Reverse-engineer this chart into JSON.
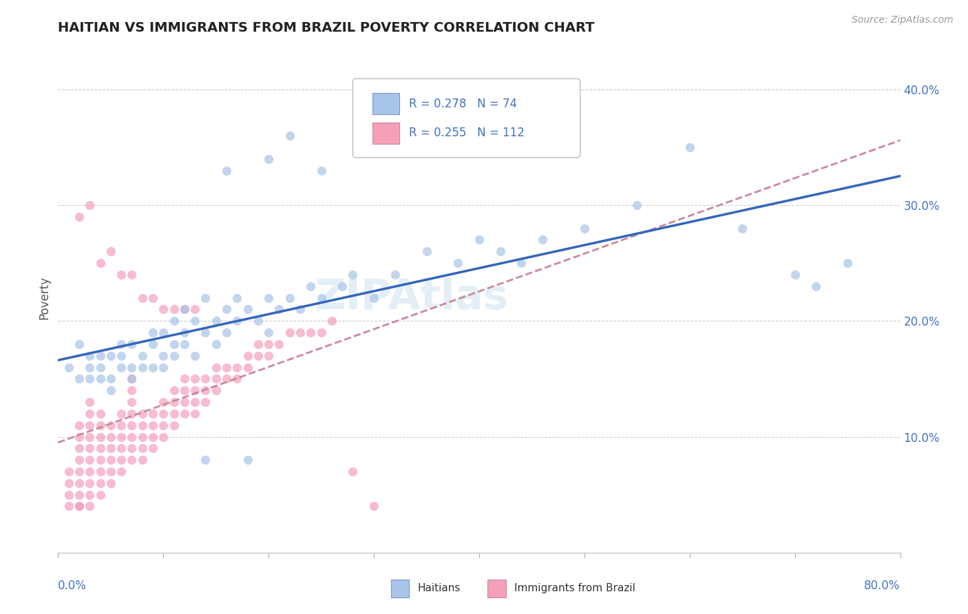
{
  "title": "HAITIAN VS IMMIGRANTS FROM BRAZIL POVERTY CORRELATION CHART",
  "source": "Source: ZipAtlas.com",
  "ylabel": "Poverty",
  "ytick_values": [
    0.1,
    0.2,
    0.3,
    0.4
  ],
  "xlim": [
    0.0,
    0.8
  ],
  "ylim": [
    0.0,
    0.44
  ],
  "legend1_R": "0.278",
  "legend1_N": "74",
  "legend2_R": "0.255",
  "legend2_N": "112",
  "color_haitian": "#a8c4e8",
  "color_brazil": "#f4a0b8",
  "color_line_haitian": "#3366bb",
  "color_line_brazil": "#cc8899",
  "haitian_x": [
    0.01,
    0.02,
    0.02,
    0.03,
    0.03,
    0.03,
    0.04,
    0.04,
    0.04,
    0.05,
    0.05,
    0.05,
    0.06,
    0.06,
    0.06,
    0.07,
    0.07,
    0.07,
    0.08,
    0.08,
    0.09,
    0.09,
    0.09,
    0.1,
    0.1,
    0.1,
    0.11,
    0.11,
    0.11,
    0.12,
    0.12,
    0.12,
    0.13,
    0.13,
    0.14,
    0.14,
    0.15,
    0.15,
    0.16,
    0.16,
    0.17,
    0.17,
    0.18,
    0.19,
    0.2,
    0.2,
    0.21,
    0.22,
    0.23,
    0.24,
    0.25,
    0.27,
    0.28,
    0.3,
    0.32,
    0.35,
    0.38,
    0.4,
    0.42,
    0.44,
    0.46,
    0.5,
    0.55,
    0.6,
    0.65,
    0.7,
    0.72,
    0.75,
    0.16,
    0.2,
    0.22,
    0.25,
    0.18,
    0.14
  ],
  "haitian_y": [
    0.16,
    0.15,
    0.18,
    0.15,
    0.17,
    0.16,
    0.15,
    0.17,
    0.16,
    0.15,
    0.17,
    0.14,
    0.16,
    0.18,
    0.17,
    0.16,
    0.18,
    0.15,
    0.17,
    0.16,
    0.18,
    0.16,
    0.19,
    0.17,
    0.19,
    0.16,
    0.18,
    0.2,
    0.17,
    0.19,
    0.21,
    0.18,
    0.2,
    0.17,
    0.19,
    0.22,
    0.2,
    0.18,
    0.21,
    0.19,
    0.2,
    0.22,
    0.21,
    0.2,
    0.19,
    0.22,
    0.21,
    0.22,
    0.21,
    0.23,
    0.22,
    0.23,
    0.24,
    0.22,
    0.24,
    0.26,
    0.25,
    0.27,
    0.26,
    0.25,
    0.27,
    0.28,
    0.3,
    0.35,
    0.28,
    0.24,
    0.23,
    0.25,
    0.33,
    0.34,
    0.36,
    0.33,
    0.08,
    0.08
  ],
  "brazil_x": [
    0.01,
    0.01,
    0.01,
    0.01,
    0.02,
    0.02,
    0.02,
    0.02,
    0.02,
    0.02,
    0.02,
    0.02,
    0.02,
    0.03,
    0.03,
    0.03,
    0.03,
    0.03,
    0.03,
    0.03,
    0.03,
    0.03,
    0.03,
    0.04,
    0.04,
    0.04,
    0.04,
    0.04,
    0.04,
    0.04,
    0.04,
    0.05,
    0.05,
    0.05,
    0.05,
    0.05,
    0.05,
    0.06,
    0.06,
    0.06,
    0.06,
    0.06,
    0.06,
    0.07,
    0.07,
    0.07,
    0.07,
    0.07,
    0.07,
    0.07,
    0.07,
    0.08,
    0.08,
    0.08,
    0.08,
    0.08,
    0.09,
    0.09,
    0.09,
    0.09,
    0.1,
    0.1,
    0.1,
    0.1,
    0.11,
    0.11,
    0.11,
    0.11,
    0.12,
    0.12,
    0.12,
    0.12,
    0.13,
    0.13,
    0.13,
    0.13,
    0.14,
    0.14,
    0.14,
    0.15,
    0.15,
    0.15,
    0.16,
    0.16,
    0.17,
    0.17,
    0.18,
    0.18,
    0.19,
    0.19,
    0.2,
    0.2,
    0.21,
    0.22,
    0.23,
    0.24,
    0.25,
    0.26,
    0.02,
    0.03,
    0.04,
    0.05,
    0.06,
    0.07,
    0.08,
    0.09,
    0.1,
    0.11,
    0.12,
    0.13,
    0.28,
    0.3
  ],
  "brazil_y": [
    0.04,
    0.05,
    0.06,
    0.07,
    0.04,
    0.05,
    0.06,
    0.07,
    0.08,
    0.09,
    0.1,
    0.11,
    0.04,
    0.05,
    0.06,
    0.07,
    0.08,
    0.09,
    0.1,
    0.11,
    0.12,
    0.13,
    0.04,
    0.05,
    0.06,
    0.07,
    0.08,
    0.09,
    0.1,
    0.11,
    0.12,
    0.06,
    0.07,
    0.08,
    0.09,
    0.1,
    0.11,
    0.07,
    0.08,
    0.09,
    0.1,
    0.11,
    0.12,
    0.08,
    0.09,
    0.1,
    0.11,
    0.12,
    0.13,
    0.14,
    0.15,
    0.08,
    0.09,
    0.1,
    0.11,
    0.12,
    0.09,
    0.1,
    0.11,
    0.12,
    0.1,
    0.11,
    0.12,
    0.13,
    0.11,
    0.12,
    0.13,
    0.14,
    0.12,
    0.13,
    0.14,
    0.15,
    0.12,
    0.13,
    0.14,
    0.15,
    0.13,
    0.14,
    0.15,
    0.14,
    0.15,
    0.16,
    0.15,
    0.16,
    0.15,
    0.16,
    0.16,
    0.17,
    0.17,
    0.18,
    0.17,
    0.18,
    0.18,
    0.19,
    0.19,
    0.19,
    0.19,
    0.2,
    0.29,
    0.3,
    0.25,
    0.26,
    0.24,
    0.24,
    0.22,
    0.22,
    0.21,
    0.21,
    0.21,
    0.21,
    0.07,
    0.04
  ]
}
